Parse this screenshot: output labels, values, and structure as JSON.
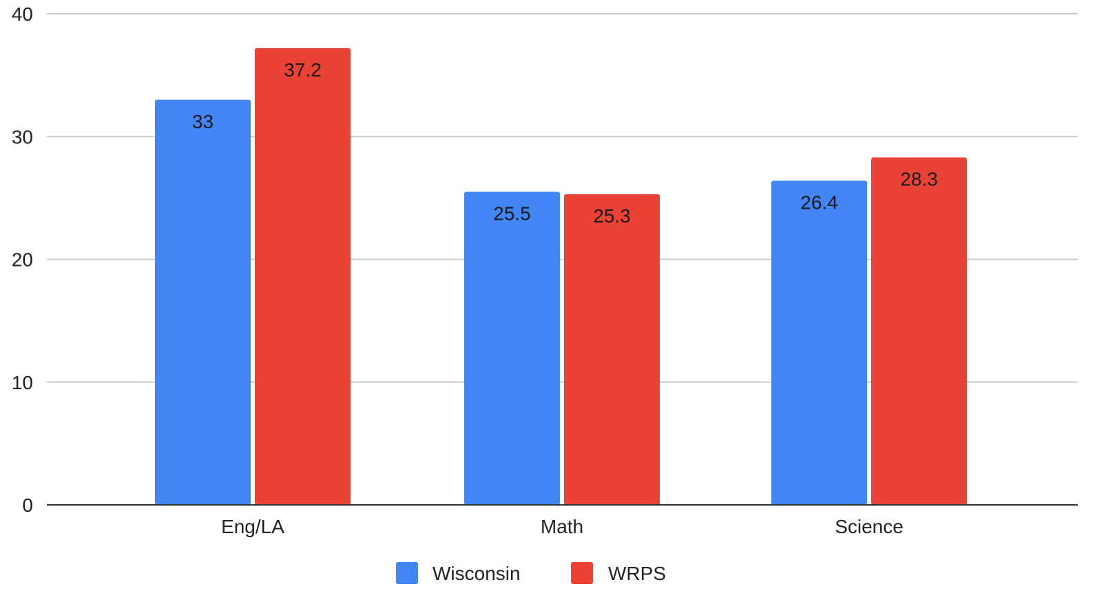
{
  "chart_data": {
    "type": "bar",
    "title": "",
    "xlabel": "",
    "ylabel": "",
    "categories": [
      "Eng/LA",
      "Math",
      "Science"
    ],
    "series": [
      {
        "name": "Wisconsin",
        "color": "#4285f4",
        "values": [
          33,
          25.5,
          26.4
        ],
        "labels": [
          "33",
          "25.5",
          "26.4"
        ]
      },
      {
        "name": "WRPS",
        "color": "#ea4335",
        "values": [
          37.2,
          25.3,
          28.3
        ],
        "labels": [
          "37.2",
          "25.3",
          "28.3"
        ]
      }
    ],
    "ylim": [
      0,
      40
    ],
    "yticks": [
      0,
      10,
      20,
      30,
      40
    ],
    "grid": true,
    "legend_position": "bottom",
    "data_labels": "inside-top"
  }
}
